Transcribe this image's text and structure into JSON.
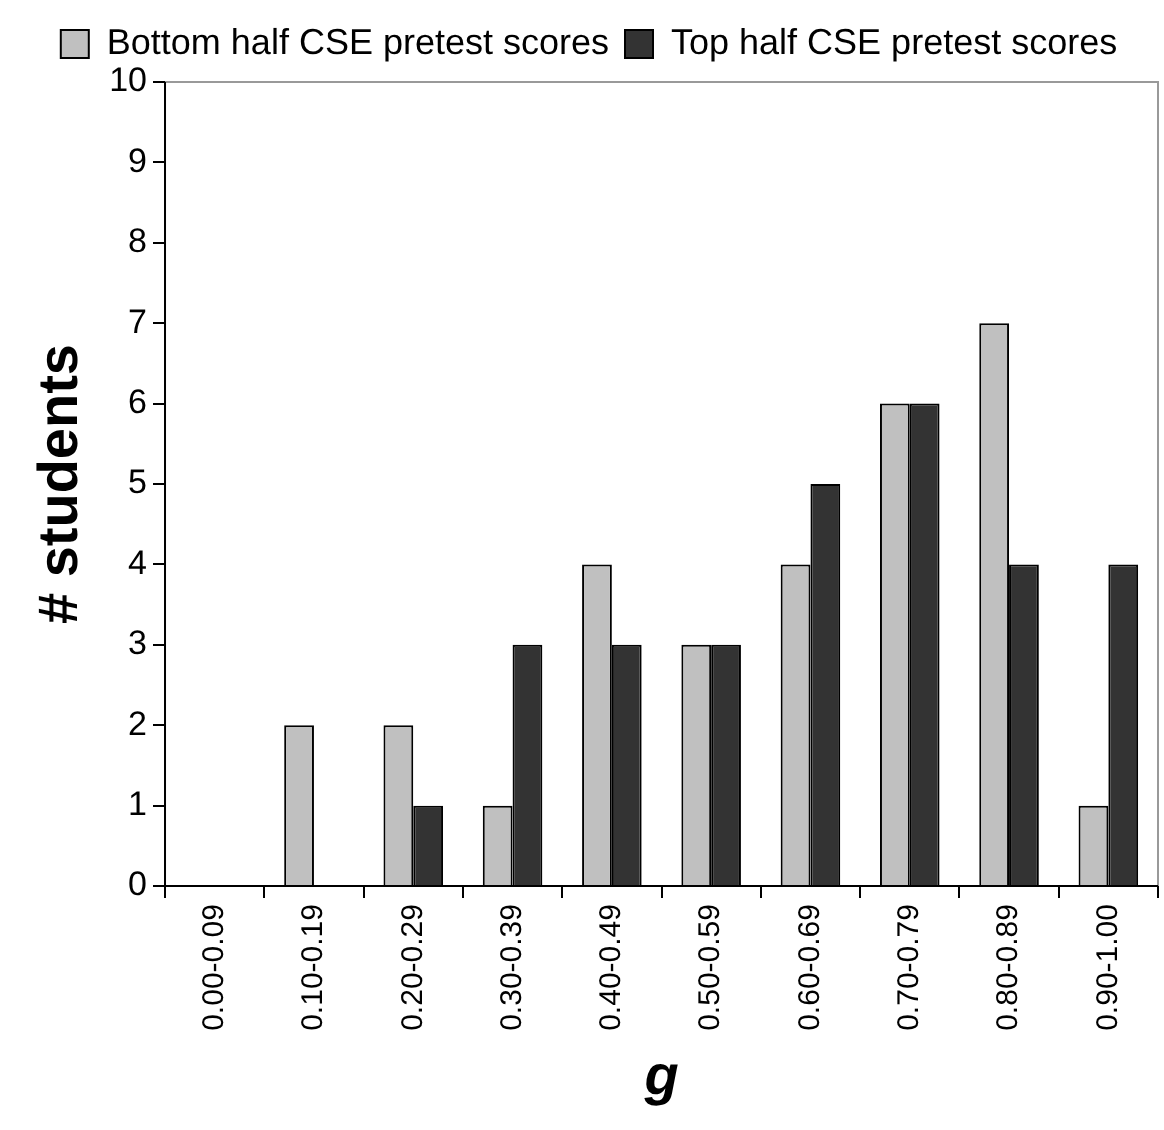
{
  "chart_data": {
    "type": "bar",
    "xlabel": "g",
    "ylabel": "# students",
    "categories": [
      "0.00-0.09",
      "0.10-0.19",
      "0.20-0.29",
      "0.30-0.39",
      "0.40-0.49",
      "0.50-0.59",
      "0.60-0.69",
      "0.70-0.79",
      "0.80-0.89",
      "0.90-1.00"
    ],
    "series": [
      {
        "name": "Bottom half CSE pretest scores",
        "color": "#c0c0c0",
        "values": [
          0,
          2,
          2,
          1,
          4,
          3,
          4,
          6,
          7,
          1
        ]
      },
      {
        "name": "Top half CSE pretest scores",
        "color": "#333333",
        "values": [
          0,
          0,
          1,
          3,
          3,
          3,
          5,
          6,
          4,
          4
        ]
      }
    ],
    "ylim": [
      0,
      10
    ],
    "yticks": [
      0,
      1,
      2,
      3,
      4,
      5,
      6,
      7,
      8,
      9,
      10
    ],
    "grid": false,
    "legend": "top"
  }
}
